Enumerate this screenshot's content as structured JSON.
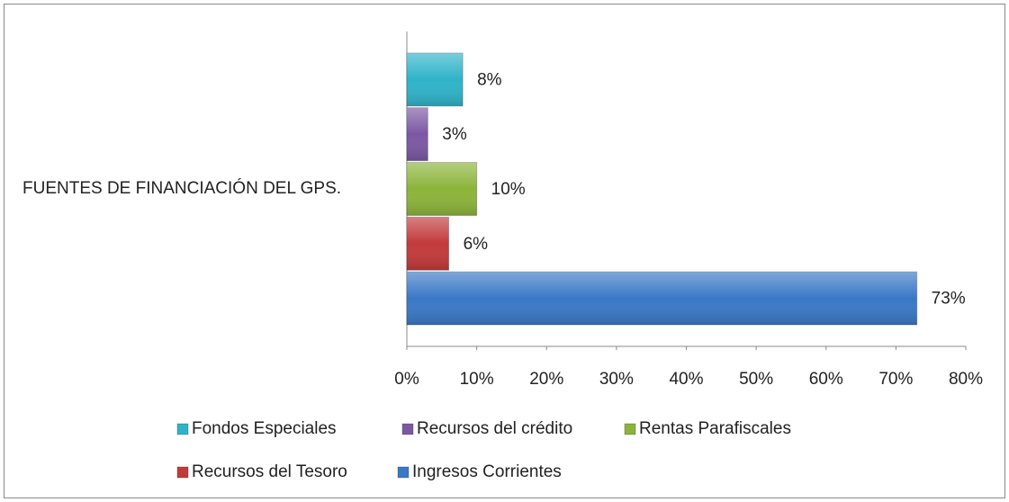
{
  "chart_data": {
    "type": "bar",
    "orientation": "horizontal",
    "categories": [
      "FUENTES DE FINANCIACIÓN DEL GPS."
    ],
    "series": [
      {
        "name": "Fondos Especiales",
        "color": "#2fb3c9",
        "values": [
          8
        ],
        "value_labels": [
          "8%"
        ]
      },
      {
        "name": "Recursos del crédito",
        "color": "#7b58a4",
        "values": [
          3
        ],
        "value_labels": [
          "3%"
        ]
      },
      {
        "name": "Rentas Parafiscales",
        "color": "#8cb43a",
        "values": [
          10
        ],
        "value_labels": [
          "10%"
        ]
      },
      {
        "name": "Recursos del Tesoro",
        "color": "#c23a3b",
        "values": [
          6
        ],
        "value_labels": [
          "6%"
        ]
      },
      {
        "name": "Ingresos Corrientes",
        "color": "#3a78c6",
        "values": [
          73
        ],
        "value_labels": [
          "73%"
        ]
      }
    ],
    "xlim": [
      0,
      80
    ],
    "xticks": [
      {
        "value": 0,
        "label": "0%"
      },
      {
        "value": 10,
        "label": "10%"
      },
      {
        "value": 20,
        "label": "20%"
      },
      {
        "value": 30,
        "label": "30%"
      },
      {
        "value": 40,
        "label": "40%"
      },
      {
        "value": 50,
        "label": "50%"
      },
      {
        "value": 60,
        "label": "60%"
      },
      {
        "value": 70,
        "label": "70%"
      },
      {
        "value": 80,
        "label": "80%"
      }
    ],
    "grid": false
  }
}
